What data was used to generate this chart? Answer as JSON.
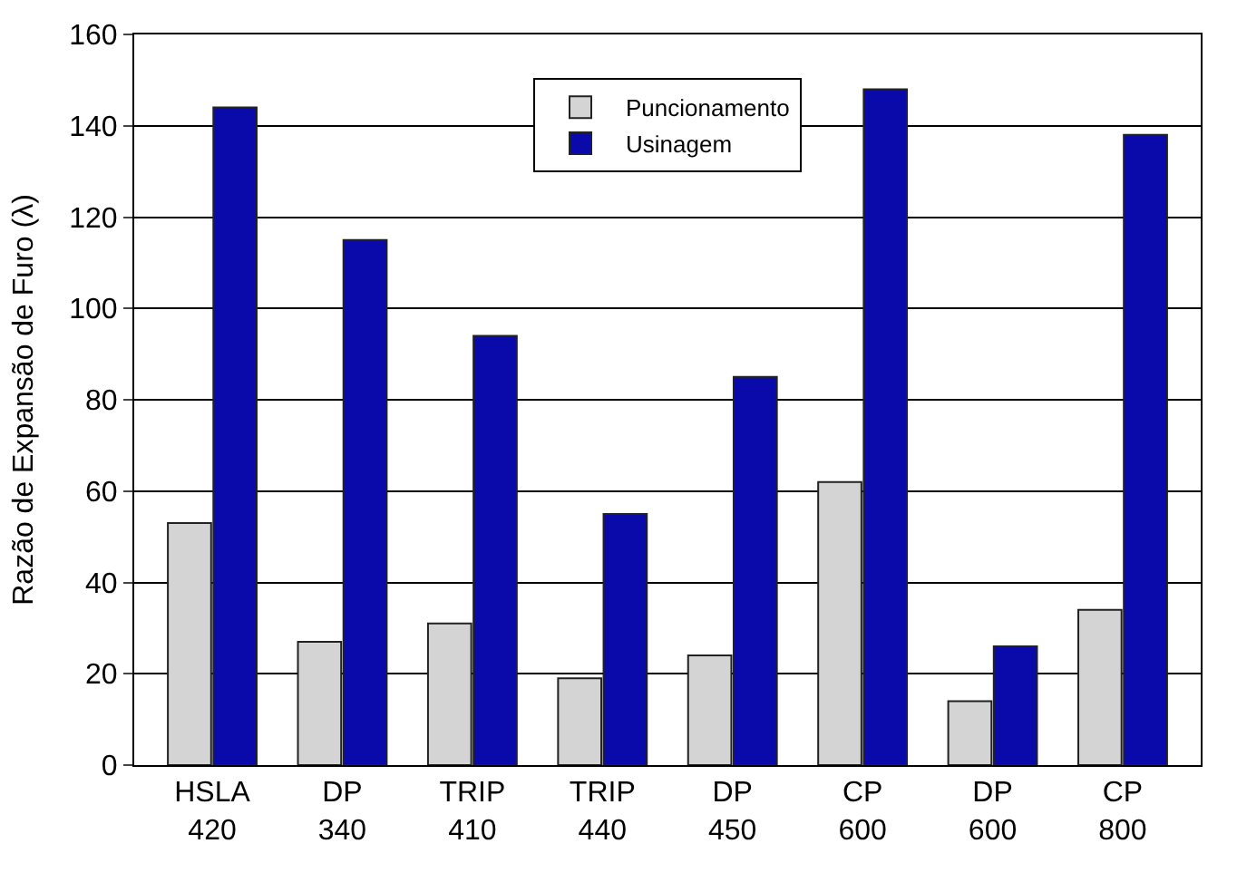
{
  "chart_data": {
    "type": "bar",
    "ylabel": "Razão de Expansão de Furo (λ)",
    "categories": [
      "HSLA 420",
      "DP 340",
      "TRIP 410",
      "TRIP 440",
      "DP 450",
      "CP 600",
      "DP 600",
      "CP 800"
    ],
    "series": [
      {
        "name": "Puncionamento",
        "color": "#d4d4d4",
        "values": [
          53,
          27,
          31,
          19,
          24,
          62,
          14,
          34
        ]
      },
      {
        "name": "Usinagem",
        "color": "#0a0aaa",
        "values": [
          144,
          115,
          94,
          55,
          85,
          148,
          26,
          138
        ]
      }
    ],
    "ylim": [
      0,
      160
    ],
    "yticks": [
      0,
      20,
      40,
      60,
      80,
      100,
      120,
      140,
      160
    ],
    "grid": "y",
    "legend": "top"
  }
}
